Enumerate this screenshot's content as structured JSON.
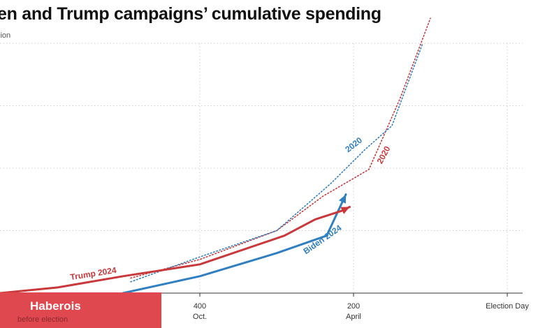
{
  "header": {
    "title": "en and Trump campaigns’ cumulative spending",
    "unit_label": "lion"
  },
  "overlay": {
    "brand": "Haberois",
    "x_caption": "before election"
  },
  "chart_data": {
    "type": "line",
    "title": "en and Trump campaigns’ cumulative spending",
    "xlabel": "before election",
    "ylabel": "lion",
    "x_axis": "days before election",
    "xlim": [
      660,
      -20
    ],
    "ylim": [
      0,
      400
    ],
    "gridlines_y": [
      100,
      200,
      300,
      400
    ],
    "x_ticks": [
      {
        "value": 400,
        "label": "400",
        "sublabel": "Oct."
      },
      {
        "value": 200,
        "label": "200",
        "sublabel": "April"
      },
      {
        "value": 0,
        "label": "Election Day",
        "sublabel": ""
      }
    ],
    "colors": {
      "trump": "#c9383b",
      "biden": "#2f7fc1"
    },
    "series": [
      {
        "name": "Trump 2024",
        "label": "Trump 2024",
        "color": "#c9383b",
        "style": "solid",
        "points": [
          [
            660,
            0
          ],
          [
            585,
            9
          ],
          [
            500,
            27
          ],
          [
            400,
            46
          ],
          [
            290,
            92
          ],
          [
            250,
            118
          ],
          [
            215,
            132
          ],
          [
            205,
            138
          ]
        ]
      },
      {
        "name": "Biden 2024",
        "label": "Biden 2024",
        "color": "#2f7fc1",
        "style": "solid",
        "points": [
          [
            500,
            0
          ],
          [
            400,
            27
          ],
          [
            300,
            64
          ],
          [
            235,
            92
          ],
          [
            210,
            158
          ]
        ]
      },
      {
        "name": "Trump 2020",
        "label": "2020",
        "color": "#c9383b",
        "style": "dotted",
        "points": [
          [
            490,
            24
          ],
          [
            400,
            54
          ],
          [
            300,
            100
          ],
          [
            240,
            155
          ],
          [
            180,
            198
          ],
          [
            140,
            310
          ],
          [
            100,
            440
          ]
        ]
      },
      {
        "name": "Biden 2020",
        "label": "2020",
        "color": "#2f7fc1",
        "style": "dotted",
        "points": [
          [
            490,
            18
          ],
          [
            400,
            58
          ],
          [
            300,
            100
          ],
          [
            230,
            175
          ],
          [
            185,
            230
          ],
          [
            150,
            268
          ],
          [
            110,
            400
          ]
        ]
      }
    ]
  }
}
